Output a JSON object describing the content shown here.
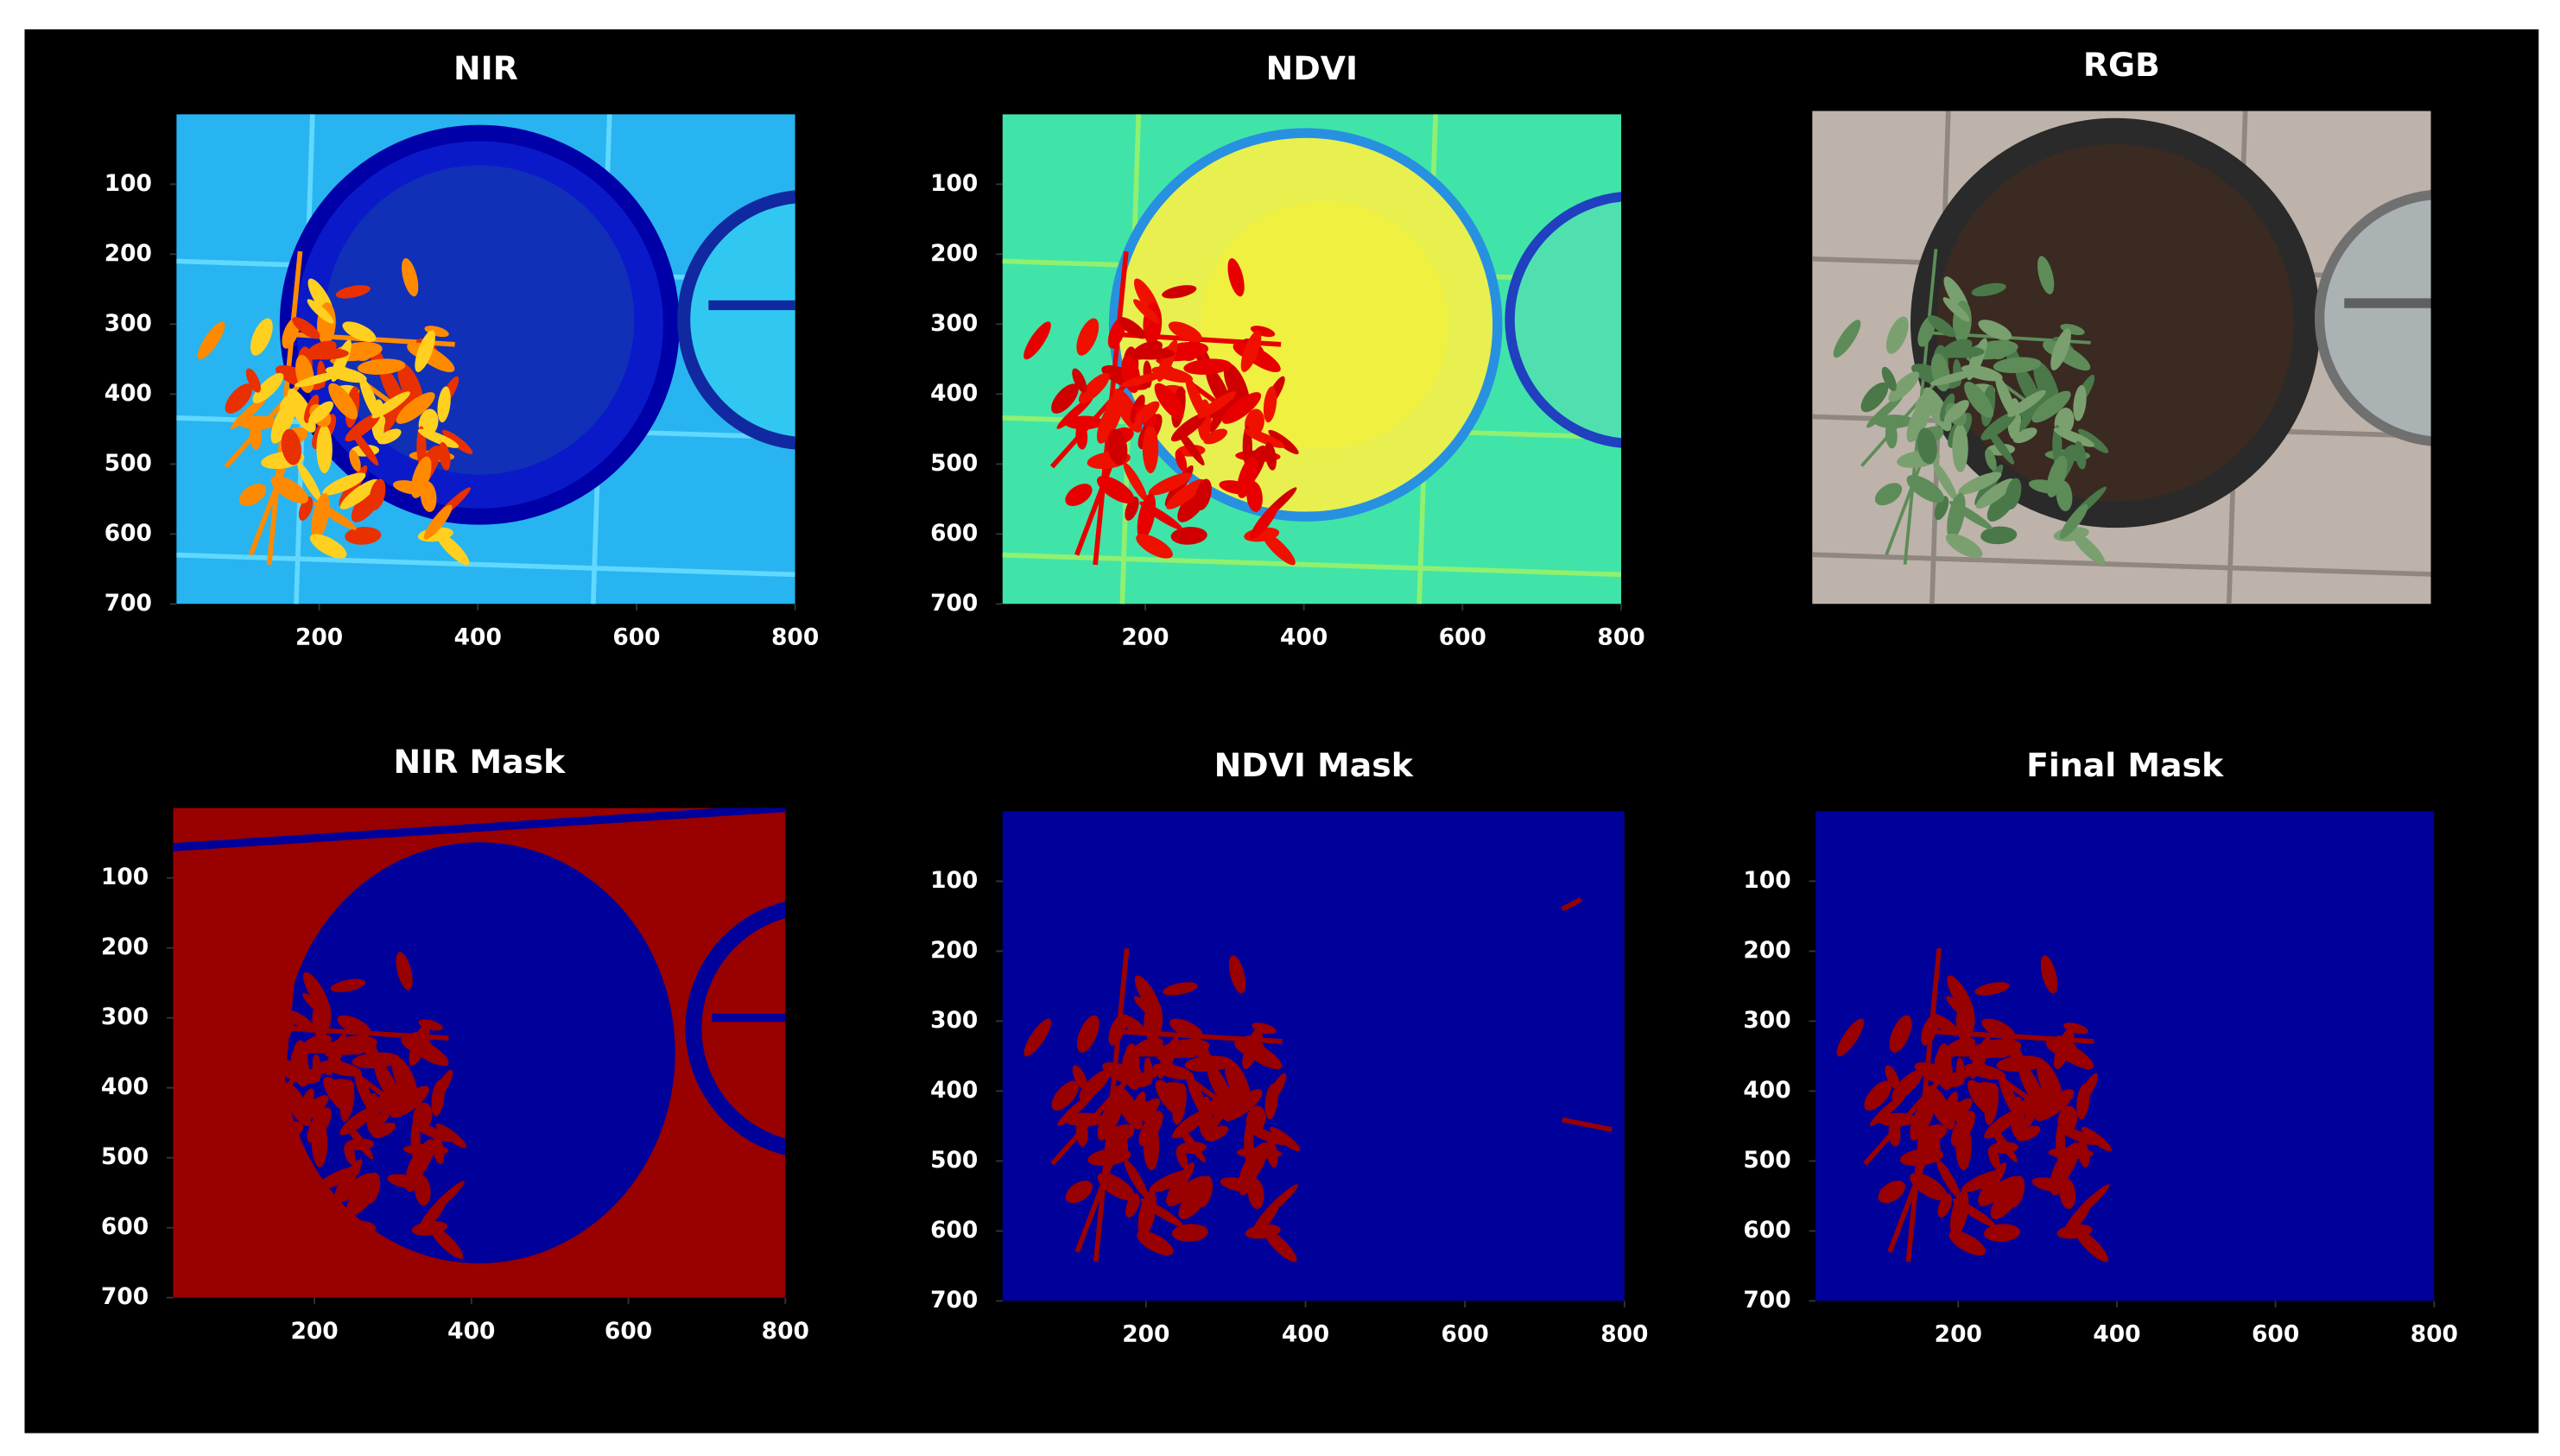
{
  "chart_data": [
    {
      "type": "image",
      "title": "NIR",
      "xlim": [
        20,
        800
      ],
      "ylim": [
        700,
        0
      ],
      "xticks": [
        200,
        400,
        600,
        800
      ],
      "yticks": [
        100,
        200,
        300,
        400,
        500,
        600,
        700
      ]
    },
    {
      "type": "image",
      "title": "NDVI",
      "xlim": [
        20,
        800
      ],
      "ylim": [
        700,
        0
      ],
      "xticks": [
        200,
        400,
        600,
        800
      ],
      "yticks": [
        100,
        200,
        300,
        400,
        500,
        600,
        700
      ]
    },
    {
      "type": "image",
      "title": "RGB"
    },
    {
      "type": "image",
      "title": "NIR Mask",
      "xlim": [
        20,
        800
      ],
      "ylim": [
        700,
        0
      ],
      "xticks": [
        200,
        400,
        600,
        800
      ],
      "yticks": [
        100,
        200,
        300,
        400,
        500,
        600,
        700
      ]
    },
    {
      "type": "image",
      "title": "NDVI Mask",
      "xlim": [
        20,
        800
      ],
      "ylim": [
        700,
        0
      ],
      "xticks": [
        200,
        400,
        600,
        800
      ],
      "yticks": [
        100,
        200,
        300,
        400,
        500,
        600,
        700
      ]
    },
    {
      "type": "image",
      "title": "Final Mask",
      "xlim": [
        20,
        800
      ],
      "ylim": [
        700,
        0
      ],
      "xticks": [
        200,
        400,
        600,
        800
      ],
      "yticks": [
        100,
        200,
        300,
        400,
        500,
        600,
        700
      ]
    }
  ]
}
